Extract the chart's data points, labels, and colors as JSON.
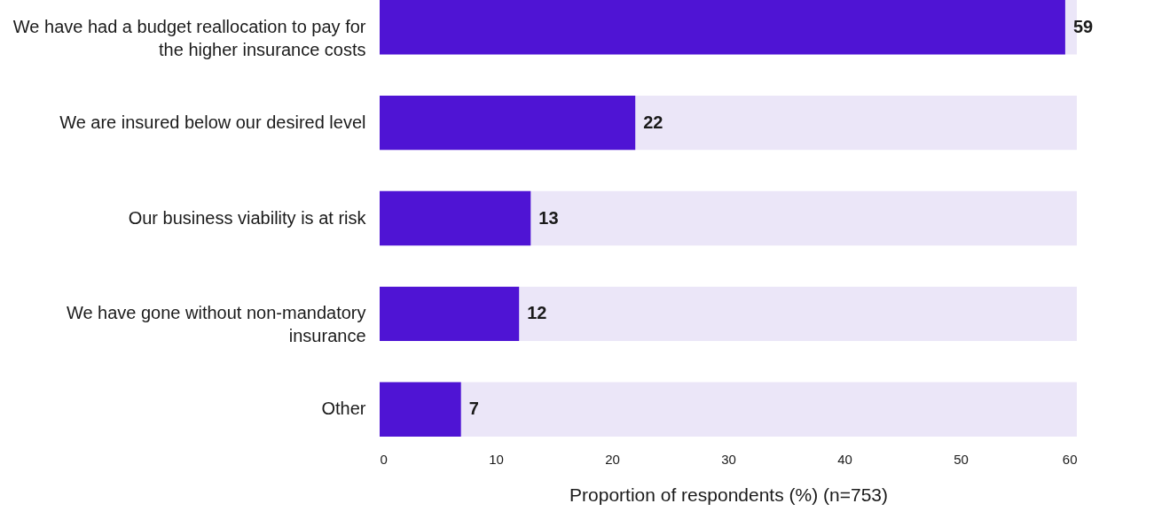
{
  "chart_data": {
    "type": "bar",
    "orientation": "horizontal",
    "xlabel": "Proportion of respondents (%) (n=753)",
    "categories": [
      "We have had a budget reallocation to pay for the higher insurance costs",
      "We are insured below our desired level",
      "Our business viability is at risk",
      "We have gone without non-mandatory insurance",
      "Other"
    ],
    "values": [
      59,
      22,
      13,
      12,
      7
    ],
    "color": "#4f14d4",
    "data_labels": true,
    "xlim": [
      0,
      60
    ],
    "xticks": [
      0,
      10,
      20,
      30,
      40,
      50,
      60
    ],
    "bands": [
      {
        "axis": "x",
        "from": 0,
        "to": 60,
        "color": "#ebe6f8"
      }
    ]
  }
}
